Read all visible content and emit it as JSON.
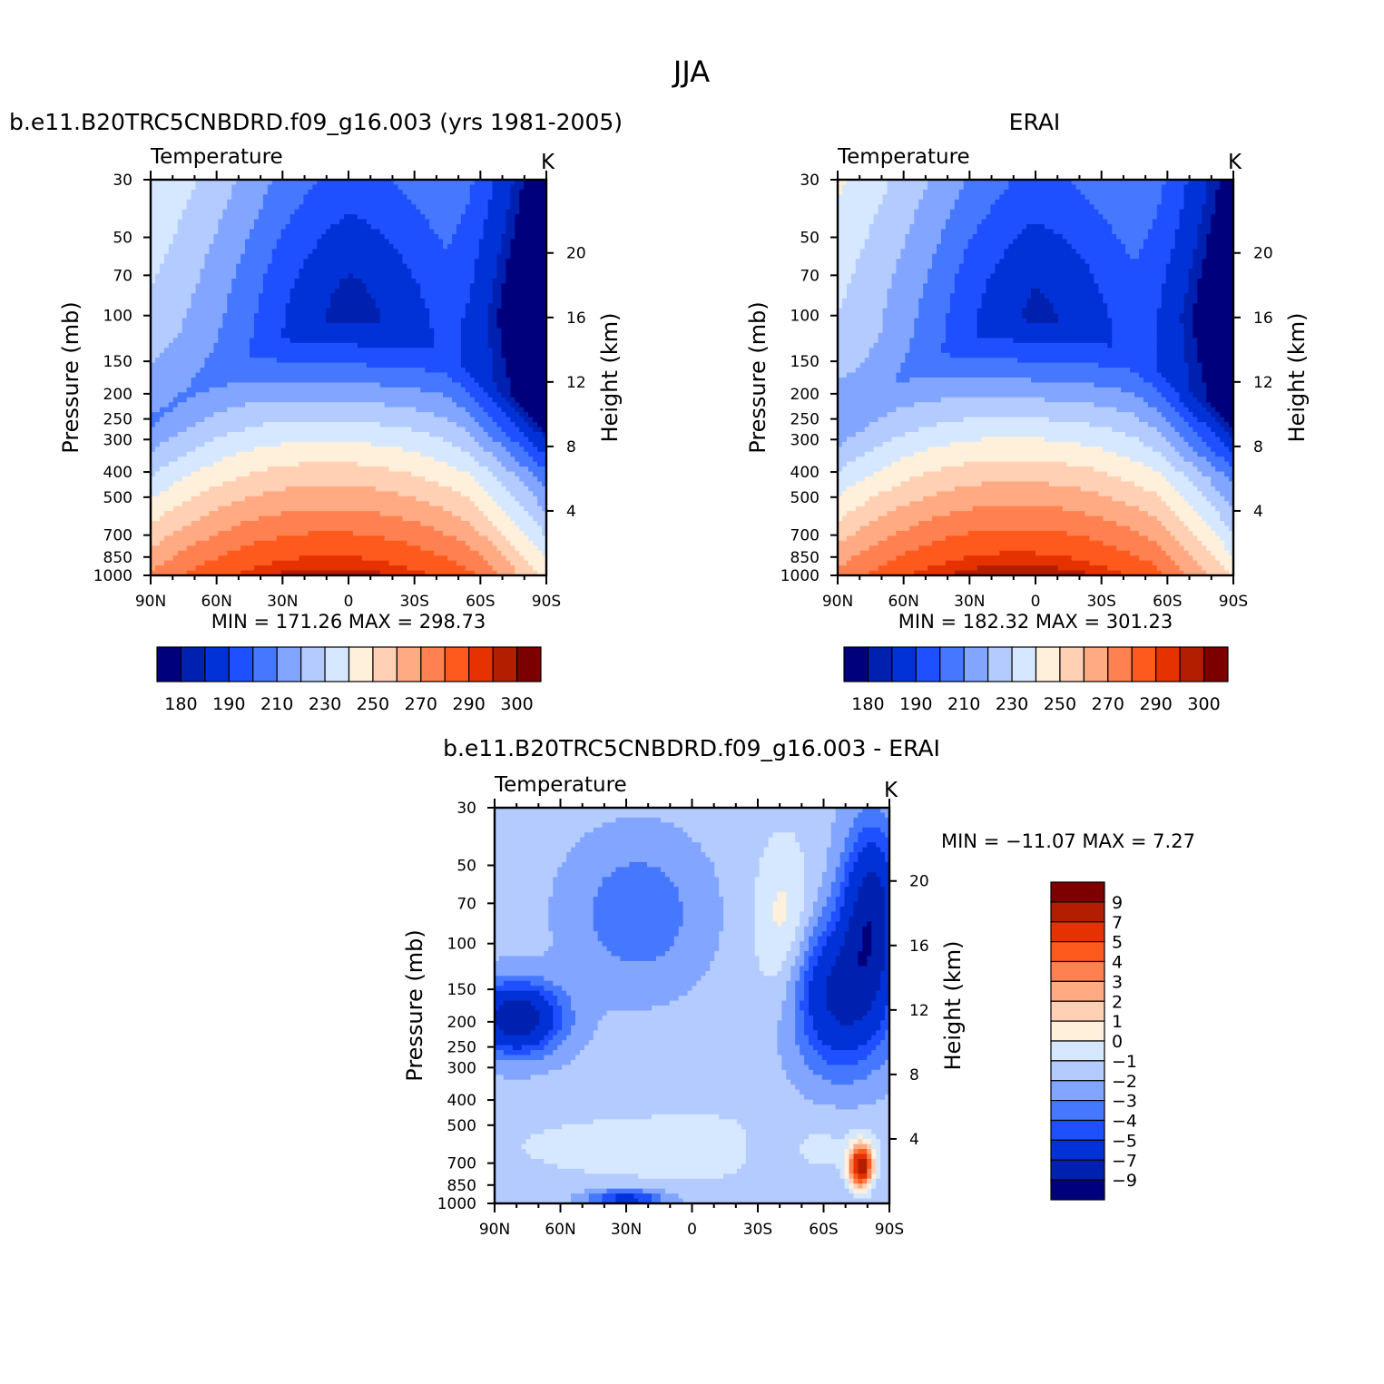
{
  "figure_title": "JJA",
  "colors": {
    "abs_levels": [
      "#00007d",
      "#0020b0",
      "#0032d8",
      "#1e50ff",
      "#4678ff",
      "#82a5ff",
      "#b4cbff",
      "#d6e8ff",
      "#fff0dc",
      "#ffd0b4",
      "#ffaa82",
      "#ff8050",
      "#ff5a1e",
      "#e63200",
      "#b41e00",
      "#7d0000"
    ],
    "diff_levels": [
      "#00007d",
      "#0020b0",
      "#0032d8",
      "#1e50ff",
      "#4678ff",
      "#82a5ff",
      "#b4cbff",
      "#d6e8ff",
      "#fff0dc",
      "#ffd0b4",
      "#ffaa82",
      "#ff8050",
      "#ff5a1e",
      "#e63200",
      "#b41e00",
      "#7d0000"
    ]
  },
  "axes": {
    "pressure_ticks": [
      "30",
      "50",
      "70",
      "100",
      "150",
      "200",
      "250",
      "300",
      "400",
      "500",
      "700",
      "850",
      "1000"
    ],
    "height_ticks": [
      "20",
      "16",
      "12",
      "8",
      "4"
    ],
    "lat_ticks": [
      "90N",
      "60N",
      "30N",
      "0",
      "30S",
      "60S",
      "90S"
    ],
    "ylabel_left": "Pressure  (mb)",
    "ylabel_right": "Height  (km)",
    "ylabel_right_diff": "Height (km)"
  },
  "panels": {
    "model": {
      "title": "b.e11.B20TRC5CNBDRD.f09_g16.003 (yrs 1981-2005)",
      "variable": "Temperature",
      "units": "K",
      "minmax": "MIN  =  171.26    MAX  =  298.73",
      "cb_labels": [
        "180",
        "190",
        "210",
        "230",
        "250",
        "270",
        "290",
        "300"
      ]
    },
    "obs": {
      "title": "ERAI",
      "variable": "Temperature",
      "units": "K",
      "minmax": "MIN  =  182.32    MAX  =  301.23",
      "cb_labels": [
        "180",
        "190",
        "210",
        "230",
        "250",
        "270",
        "290",
        "300"
      ]
    },
    "diff": {
      "title": "b.e11.B20TRC5CNBDRD.f09_g16.003  -  ERAI",
      "variable": "Temperature",
      "units": "K",
      "minmax": "MIN  =  -11.07    MAX  =     7.27",
      "cb_labels": [
        "9",
        "7",
        "5",
        "4",
        "3",
        "2",
        "1",
        "0",
        "-1",
        "-2",
        "-3",
        "-4",
        "-5",
        "-7",
        "-9"
      ]
    }
  },
  "chart_data": [
    {
      "type": "heatmap",
      "title": "b.e11.B20TRC5CNBDRD.f09_g16.003 (yrs 1981-2005)",
      "subtitle": "Temperature",
      "units": "K",
      "xlabel": "",
      "ylabel": "Pressure  (mb)",
      "ylabel_right": "Height  (km)",
      "x_ticks": [
        "90N",
        "60N",
        "30N",
        "0",
        "30S",
        "60S",
        "90S"
      ],
      "y_ticks": [
        "30",
        "50",
        "70",
        "100",
        "150",
        "200",
        "250",
        "300",
        "400",
        "500",
        "700",
        "850",
        "1000"
      ],
      "min": 171.26,
      "max": 298.73,
      "colorbar_labels": [
        180,
        190,
        210,
        230,
        250,
        270,
        290,
        300
      ]
    },
    {
      "type": "heatmap",
      "title": "ERAI",
      "subtitle": "Temperature",
      "units": "K",
      "xlabel": "",
      "ylabel": "Pressure  (mb)",
      "ylabel_right": "Height  (km)",
      "x_ticks": [
        "90N",
        "60N",
        "30N",
        "0",
        "30S",
        "60S",
        "90S"
      ],
      "y_ticks": [
        "30",
        "50",
        "70",
        "100",
        "150",
        "200",
        "250",
        "300",
        "400",
        "500",
        "700",
        "850",
        "1000"
      ],
      "min": 182.32,
      "max": 301.23,
      "colorbar_labels": [
        180,
        190,
        210,
        230,
        250,
        270,
        290,
        300
      ]
    },
    {
      "type": "heatmap",
      "title": "b.e11.B20TRC5CNBDRD.f09_g16.003  -  ERAI",
      "subtitle": "Temperature",
      "units": "K",
      "xlabel": "",
      "ylabel": "Pressure  (mb)",
      "ylabel_right": "Height (km)",
      "x_ticks": [
        "90N",
        "60N",
        "30N",
        "0",
        "30S",
        "60S",
        "90S"
      ],
      "y_ticks": [
        "30",
        "50",
        "70",
        "100",
        "150",
        "200",
        "250",
        "300",
        "400",
        "500",
        "700",
        "850",
        "1000"
      ],
      "min": -11.07,
      "max": 7.27,
      "colorbar_labels": [
        9,
        7,
        5,
        4,
        3,
        2,
        1,
        0,
        -1,
        -2,
        -3,
        -4,
        -5,
        -7,
        -9
      ]
    }
  ]
}
